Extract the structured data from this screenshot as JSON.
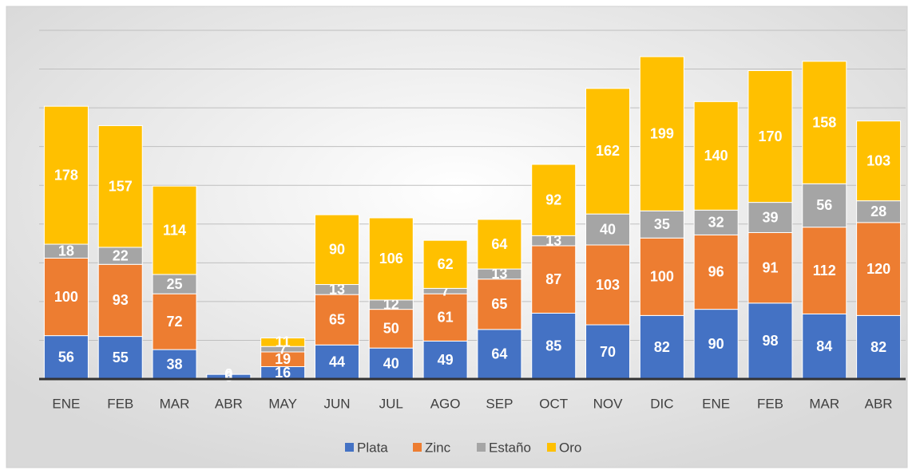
{
  "chart_data": {
    "type": "stacked_bar",
    "categories": [
      "ENE",
      "FEB",
      "MAR",
      "ABR",
      "MAY",
      "JUN",
      "JUL",
      "AGO",
      "SEP",
      "OCT",
      "NOV",
      "DIC",
      "ENE",
      "FEB",
      "MAR",
      "ABR"
    ],
    "series": [
      {
        "name": "Plata",
        "color": "#4472c4",
        "values": [
          56,
          55,
          38,
          6,
          16,
          44,
          40,
          49,
          64,
          85,
          70,
          82,
          90,
          98,
          84,
          82
        ]
      },
      {
        "name": "Zinc",
        "color": "#ed7d31",
        "values": [
          100,
          93,
          72,
          0,
          19,
          65,
          50,
          61,
          65,
          87,
          103,
          100,
          96,
          91,
          112,
          120
        ]
      },
      {
        "name": "Estaño",
        "color": "#a5a5a5",
        "values": [
          18,
          22,
          25,
          0,
          7,
          13,
          12,
          7,
          13,
          13,
          40,
          35,
          32,
          39,
          56,
          28
        ]
      },
      {
        "name": "Oro",
        "color": "#ffc000",
        "values": [
          178,
          157,
          114,
          0,
          11,
          90,
          106,
          62,
          64,
          92,
          162,
          199,
          140,
          170,
          158,
          103
        ]
      }
    ],
    "ylim": [
      0,
      450
    ],
    "yticks": [
      0,
      50,
      100,
      150,
      200,
      250,
      300,
      350,
      400,
      450
    ],
    "grid": true,
    "legend": "bottom"
  }
}
